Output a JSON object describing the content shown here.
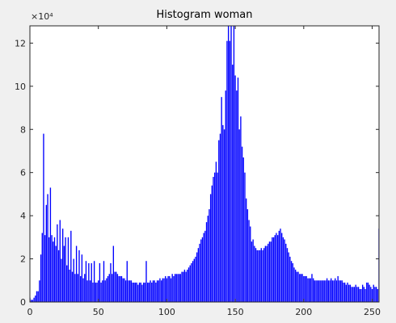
{
  "chart_data": {
    "type": "bar",
    "title": "Histogram woman",
    "y_multiplier": "×10⁴",
    "color": "#0000ff",
    "x": [
      0,
      1,
      2,
      3,
      4,
      5,
      6,
      7,
      8,
      9,
      10,
      11,
      12,
      13,
      14,
      15,
      16,
      17,
      18,
      19,
      20,
      21,
      22,
      23,
      24,
      25,
      26,
      27,
      28,
      29,
      30,
      31,
      32,
      33,
      34,
      35,
      36,
      37,
      38,
      39,
      40,
      41,
      42,
      43,
      44,
      45,
      46,
      47,
      48,
      49,
      50,
      51,
      52,
      53,
      54,
      55,
      56,
      57,
      58,
      59,
      60,
      61,
      62,
      63,
      64,
      65,
      66,
      67,
      68,
      69,
      70,
      71,
      72,
      73,
      74,
      75,
      76,
      77,
      78,
      79,
      80,
      81,
      82,
      83,
      84,
      85,
      86,
      87,
      88,
      89,
      90,
      91,
      92,
      93,
      94,
      95,
      96,
      97,
      98,
      99,
      100,
      101,
      102,
      103,
      104,
      105,
      106,
      107,
      108,
      109,
      110,
      111,
      112,
      113,
      114,
      115,
      116,
      117,
      118,
      119,
      120,
      121,
      122,
      123,
      124,
      125,
      126,
      127,
      128,
      129,
      130,
      131,
      132,
      133,
      134,
      135,
      136,
      137,
      138,
      139,
      140,
      141,
      142,
      143,
      144,
      145,
      146,
      147,
      148,
      149,
      150,
      151,
      152,
      153,
      154,
      155,
      156,
      157,
      158,
      159,
      160,
      161,
      162,
      163,
      164,
      165,
      166,
      167,
      168,
      169,
      170,
      171,
      172,
      173,
      174,
      175,
      176,
      177,
      178,
      179,
      180,
      181,
      182,
      183,
      184,
      185,
      186,
      187,
      188,
      189,
      190,
      191,
      192,
      193,
      194,
      195,
      196,
      197,
      198,
      199,
      200,
      201,
      202,
      203,
      204,
      205,
      206,
      207,
      208,
      209,
      210,
      211,
      212,
      213,
      214,
      215,
      216,
      217,
      218,
      219,
      220,
      221,
      222,
      223,
      224,
      225,
      226,
      227,
      228,
      229,
      230,
      231,
      232,
      233,
      234,
      235,
      236,
      237,
      238,
      239,
      240,
      241,
      242,
      243,
      244,
      245,
      246,
      247,
      248,
      249,
      250,
      251,
      252,
      253,
      254,
      255
    ],
    "values": [
      2000,
      1000,
      1000,
      2000,
      3000,
      5000,
      5000,
      10000,
      22000,
      32000,
      78000,
      31000,
      45000,
      50000,
      30000,
      53000,
      31000,
      28000,
      30000,
      26000,
      36000,
      24000,
      38000,
      20000,
      34000,
      26000,
      30000,
      17000,
      30000,
      15000,
      33000,
      14000,
      20000,
      13000,
      26000,
      13000,
      24000,
      12000,
      22000,
      11000,
      13000,
      19000,
      10000,
      18000,
      10000,
      18000,
      9000,
      19000,
      9000,
      9000,
      10000,
      18000,
      9000,
      10000,
      19000,
      10000,
      11000,
      12000,
      13000,
      18000,
      13000,
      26000,
      14000,
      14000,
      13000,
      12000,
      12000,
      12000,
      11000,
      11000,
      10000,
      19000,
      10000,
      10000,
      10000,
      9000,
      9000,
      9000,
      9000,
      8000,
      9000,
      9000,
      8000,
      9000,
      9000,
      19000,
      9000,
      9000,
      10000,
      9000,
      10000,
      10000,
      9000,
      10000,
      10000,
      11000,
      10000,
      11000,
      11000,
      12000,
      11000,
      12000,
      12000,
      11000,
      13000,
      12000,
      13000,
      13000,
      13000,
      13000,
      13000,
      14000,
      14000,
      15000,
      14000,
      15000,
      16000,
      17000,
      18000,
      19000,
      20000,
      21000,
      23000,
      25000,
      27000,
      29000,
      30000,
      32000,
      33000,
      37000,
      40000,
      43000,
      50000,
      54000,
      58000,
      60000,
      65000,
      60000,
      75000,
      78000,
      95000,
      82000,
      80000,
      98000,
      121000,
      128000,
      121000,
      128000,
      110000,
      128000,
      105000,
      98000,
      104000,
      80000,
      86000,
      72000,
      67000,
      60000,
      48000,
      43000,
      38000,
      35000,
      28000,
      29000,
      26000,
      25000,
      24000,
      24000,
      24000,
      25000,
      24000,
      25000,
      26000,
      26000,
      27000,
      28000,
      28000,
      30000,
      30000,
      31000,
      32000,
      31000,
      33000,
      34000,
      32000,
      30000,
      29000,
      27000,
      25000,
      23000,
      21000,
      19000,
      18000,
      16000,
      15000,
      14000,
      14000,
      13000,
      13000,
      13000,
      12000,
      12000,
      12000,
      11000,
      11000,
      11000,
      13000,
      11000,
      10000,
      10000,
      10000,
      10000,
      10000,
      10000,
      10000,
      10000,
      10000,
      11000,
      10000,
      10000,
      11000,
      10000,
      10000,
      11000,
      10000,
      12000,
      10000,
      10000,
      10000,
      9000,
      9000,
      8000,
      9000,
      8000,
      8000,
      7000,
      7000,
      7000,
      8000,
      7000,
      7000,
      6000,
      6000,
      8000,
      7000,
      6000,
      9000,
      9000,
      8000,
      7000,
      6000,
      8000,
      7000,
      7000,
      6000,
      34000
    ],
    "xlim": [
      0,
      255
    ],
    "xticks": [
      0,
      50,
      100,
      150,
      200,
      250
    ],
    "ylim": [
      0,
      128000
    ],
    "yticks": [
      0,
      {
        "value": 20000,
        "label": "2"
      },
      {
        "value": 40000,
        "label": "4"
      },
      {
        "value": 60000,
        "label": "6"
      },
      {
        "value": 80000,
        "label": "8"
      },
      {
        "value": 100000,
        "label": "10"
      },
      {
        "value": 120000,
        "label": "12"
      }
    ]
  }
}
